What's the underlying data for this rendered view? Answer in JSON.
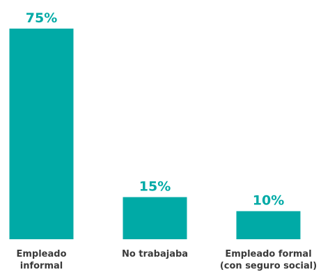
{
  "chart_data": {
    "type": "bar",
    "categories": [
      "Empleado\ninformal",
      "No trabajaba",
      "Empleado formal\n(con seguro social)"
    ],
    "values": [
      75,
      15,
      10
    ],
    "value_labels": [
      "75%",
      "15%",
      "10%"
    ],
    "color": "#00aaa6",
    "ylim": [
      0,
      75
    ]
  }
}
